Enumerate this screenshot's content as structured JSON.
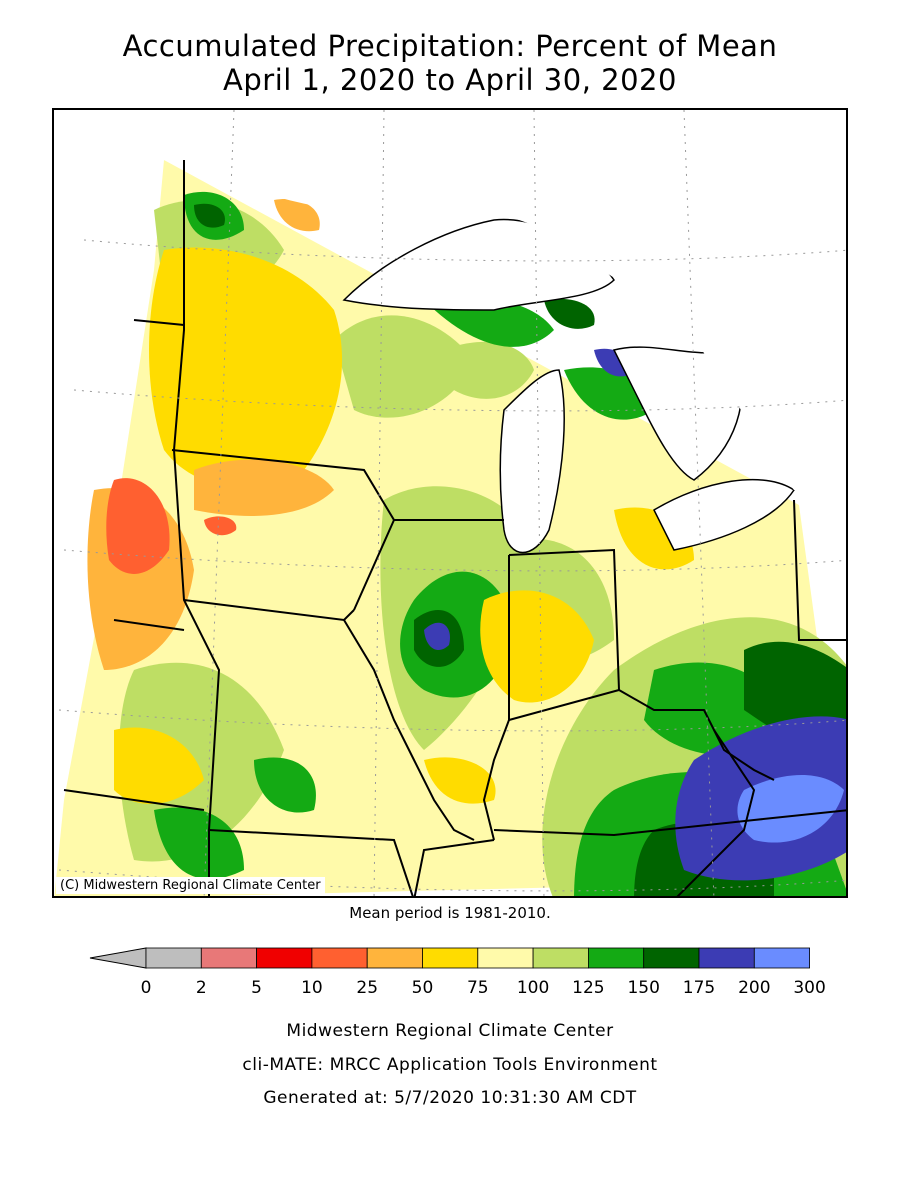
{
  "title": {
    "line1": "Accumulated Precipitation: Percent of Mean",
    "line2": "April 1, 2020 to April 30, 2020"
  },
  "map": {
    "copyright": "(C) Midwestern Regional Climate Center",
    "mean_period": "Mean period is 1981-2010."
  },
  "legend": {
    "tick_labels": [
      "0",
      "2",
      "5",
      "10",
      "25",
      "50",
      "75",
      "100",
      "125",
      "150",
      "175",
      "200",
      "300"
    ],
    "colors": [
      "#bebebe",
      "#e87878",
      "#f00000",
      "#ff6030",
      "#ffb43c",
      "#ffdc00",
      "#fffaaa",
      "#bede64",
      "#14aa14",
      "#006400",
      "#3c3cb4",
      "#6a8cff"
    ],
    "underflow_color": "#bebebe"
  },
  "footer": {
    "line1": "Midwestern Regional Climate Center",
    "line2": "cli-MATE: MRCC Application Tools Environment",
    "line3": "Generated at: 5/7/2020 10:31:30 AM CDT"
  }
}
